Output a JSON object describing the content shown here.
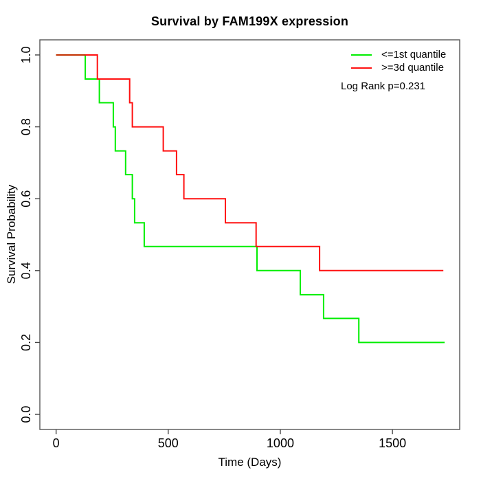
{
  "page": {
    "background": "#FFFFFF",
    "text_color": "#000000"
  },
  "chart_data": {
    "type": "line",
    "subtype": "kaplan-meier-step",
    "title": "Survival by FAM199X expression",
    "xlabel": "Time (Days)",
    "ylabel": "Survival Probability",
    "grid": false,
    "legend_position": "top-right",
    "annotation": "Log Rank p=0.231",
    "x_ticks": [
      0,
      500,
      1000,
      1500
    ],
    "x_tick_labels": [
      "0",
      "500",
      "1000",
      "1500"
    ],
    "y_ticks": [
      0.0,
      0.2,
      0.4,
      0.6,
      0.8,
      1.0
    ],
    "y_tick_labels": [
      "0.0",
      "0.2",
      "0.4",
      "0.6",
      "0.8",
      "1.0"
    ],
    "xlim": [
      -72.5,
      1800
    ],
    "ylim": [
      -0.042,
      1.042
    ],
    "axis_color": "#555555",
    "tick_color": "#444444",
    "overlap_color": "#C23000",
    "series": [
      {
        "name": "<=1st quantile",
        "color": "#00EE00",
        "start_time": 0,
        "start_survival": 1.0,
        "event_times": [
          130,
          193,
          255,
          264,
          310,
          340,
          350,
          393,
          896,
          1089,
          1193,
          1350
        ],
        "survival_values": [
          0.933,
          0.867,
          0.8,
          0.733,
          0.667,
          0.6,
          0.533,
          0.467,
          0.4,
          0.333,
          0.267,
          0.2
        ],
        "end_time": 1733
      },
      {
        "name": ">=3d quantile",
        "color": "#FF1010",
        "start_time": 0,
        "start_survival": 1.0,
        "event_times": [
          184,
          328,
          340,
          478,
          537,
          570,
          755,
          892,
          1175
        ],
        "survival_values": [
          0.933,
          0.867,
          0.8,
          0.733,
          0.667,
          0.6,
          0.533,
          0.467,
          0.4
        ],
        "end_time": 1727
      }
    ]
  }
}
